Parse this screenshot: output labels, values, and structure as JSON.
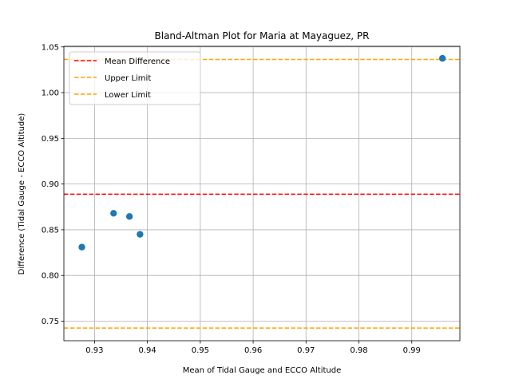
{
  "chart_data": {
    "type": "scatter",
    "title": "Bland-Altman Plot for Maria at Mayaguez, PR",
    "xlabel": "Mean of Tidal Gauge and ECCO Altitude",
    "ylabel": "Difference (Tidal Gauge - ECCO Altitude)",
    "xlim": [
      0.9242,
      0.9991
    ],
    "ylim": [
      0.7286,
      1.0507
    ],
    "grid": true,
    "legend_position": "upper left",
    "x_ticks": [
      {
        "value": 0.93,
        "label": "0.93"
      },
      {
        "value": 0.94,
        "label": "0.94"
      },
      {
        "value": 0.95,
        "label": "0.95"
      },
      {
        "value": 0.96,
        "label": "0.96"
      },
      {
        "value": 0.97,
        "label": "0.97"
      },
      {
        "value": 0.98,
        "label": "0.98"
      },
      {
        "value": 0.99,
        "label": "0.99"
      }
    ],
    "y_ticks": [
      {
        "value": 0.75,
        "label": "0.75"
      },
      {
        "value": 0.8,
        "label": "0.80"
      },
      {
        "value": 0.85,
        "label": "0.85"
      },
      {
        "value": 0.9,
        "label": "0.90"
      },
      {
        "value": 0.95,
        "label": "0.95"
      },
      {
        "value": 1.0,
        "label": "1.00"
      },
      {
        "value": 1.05,
        "label": "1.05"
      }
    ],
    "points": [
      {
        "x": 0.9276,
        "y": 0.831
      },
      {
        "x": 0.9336,
        "y": 0.868
      },
      {
        "x": 0.9366,
        "y": 0.8645
      },
      {
        "x": 0.9386,
        "y": 0.845
      },
      {
        "x": 0.9958,
        "y": 1.0375
      }
    ],
    "point_color": "#1f77b4",
    "lines": [
      {
        "name": "Mean Difference",
        "y": 0.8889,
        "color": "#ff0000"
      },
      {
        "name": "Upper Limit",
        "y": 1.0363,
        "color": "#ffa500"
      },
      {
        "name": "Lower Limit",
        "y": 0.7425,
        "color": "#ffa500"
      }
    ]
  }
}
